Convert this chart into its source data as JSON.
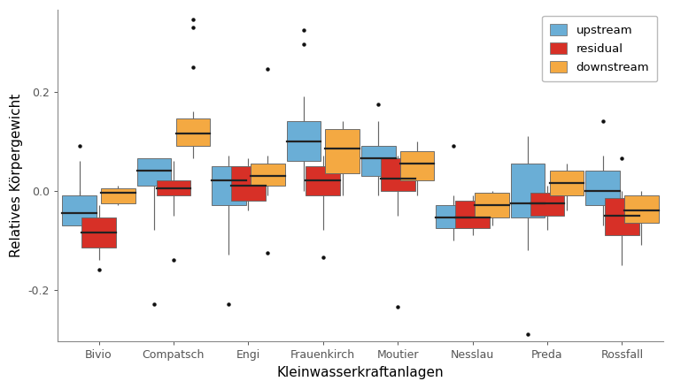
{
  "stations": [
    "Bivio",
    "Compatsch",
    "Engi",
    "Frauenkirch",
    "Moutier",
    "Nesslau",
    "Preda",
    "Rossfall"
  ],
  "types": [
    "upstream",
    "residual",
    "downstream"
  ],
  "colors": {
    "upstream": "#6aaed6",
    "residual": "#d73027",
    "downstream": "#f4a942"
  },
  "ylabel": "Relatives Körpergewicht",
  "xlabel": "Kleinwasserkraftanlagen",
  "ylim": [
    -0.305,
    0.365
  ],
  "yticks": [
    -0.2,
    0.0,
    0.2
  ],
  "box_data": {
    "Bivio": {
      "upstream": {
        "q1": -0.07,
        "med": -0.045,
        "q3": -0.01,
        "whlo": 0.0,
        "whhi": 0.06,
        "fliers": [
          0.09
        ]
      },
      "residual": {
        "q1": -0.115,
        "med": -0.085,
        "q3": -0.055,
        "whlo": -0.14,
        "whhi": -0.03,
        "fliers": [
          -0.16
        ]
      },
      "downstream": {
        "q1": -0.025,
        "med": -0.005,
        "q3": 0.005,
        "whlo": -0.03,
        "whhi": 0.01,
        "fliers": []
      }
    },
    "Compatsch": {
      "upstream": {
        "q1": 0.01,
        "med": 0.04,
        "q3": 0.065,
        "whlo": -0.08,
        "whhi": 0.065,
        "fliers": [
          -0.23
        ]
      },
      "residual": {
        "q1": -0.01,
        "med": 0.005,
        "q3": 0.02,
        "whlo": -0.05,
        "whhi": 0.06,
        "fliers": [
          -0.14
        ]
      },
      "downstream": {
        "q1": 0.09,
        "med": 0.115,
        "q3": 0.145,
        "whlo": 0.065,
        "whhi": 0.16,
        "fliers": [
          0.25,
          0.33,
          0.345
        ]
      }
    },
    "Engi": {
      "upstream": {
        "q1": -0.03,
        "med": 0.02,
        "q3": 0.05,
        "whlo": -0.13,
        "whhi": 0.07,
        "fliers": [
          -0.23
        ]
      },
      "residual": {
        "q1": -0.02,
        "med": 0.01,
        "q3": 0.05,
        "whlo": -0.04,
        "whhi": 0.065,
        "fliers": []
      },
      "downstream": {
        "q1": 0.01,
        "med": 0.03,
        "q3": 0.055,
        "whlo": -0.01,
        "whhi": 0.07,
        "fliers": [
          0.245,
          -0.125
        ]
      }
    },
    "Frauenkirch": {
      "upstream": {
        "q1": 0.06,
        "med": 0.1,
        "q3": 0.14,
        "whlo": 0.0,
        "whhi": 0.19,
        "fliers": [
          0.295,
          0.325
        ]
      },
      "residual": {
        "q1": -0.01,
        "med": 0.02,
        "q3": 0.05,
        "whlo": -0.08,
        "whhi": 0.07,
        "fliers": [
          -0.135
        ]
      },
      "downstream": {
        "q1": 0.035,
        "med": 0.085,
        "q3": 0.125,
        "whlo": -0.01,
        "whhi": 0.14,
        "fliers": []
      }
    },
    "Moutier": {
      "upstream": {
        "q1": 0.03,
        "med": 0.065,
        "q3": 0.09,
        "whlo": -0.01,
        "whhi": 0.14,
        "fliers": [
          0.175
        ]
      },
      "residual": {
        "q1": 0.0,
        "med": 0.025,
        "q3": 0.065,
        "whlo": -0.05,
        "whhi": 0.07,
        "fliers": [
          -0.235
        ]
      },
      "downstream": {
        "q1": 0.02,
        "med": 0.055,
        "q3": 0.08,
        "whlo": -0.01,
        "whhi": 0.1,
        "fliers": []
      }
    },
    "Nesslau": {
      "upstream": {
        "q1": -0.075,
        "med": -0.055,
        "q3": -0.03,
        "whlo": -0.1,
        "whhi": -0.01,
        "fliers": [
          0.09
        ]
      },
      "residual": {
        "q1": -0.075,
        "med": -0.055,
        "q3": -0.02,
        "whlo": -0.09,
        "whhi": -0.01,
        "fliers": []
      },
      "downstream": {
        "q1": -0.055,
        "med": -0.03,
        "q3": -0.005,
        "whlo": -0.07,
        "whhi": 0.0,
        "fliers": []
      }
    },
    "Preda": {
      "upstream": {
        "q1": -0.055,
        "med": -0.025,
        "q3": 0.055,
        "whlo": -0.12,
        "whhi": 0.11,
        "fliers": [
          -0.29
        ]
      },
      "residual": {
        "q1": -0.05,
        "med": -0.025,
        "q3": -0.005,
        "whlo": -0.08,
        "whhi": 0.01,
        "fliers": []
      },
      "downstream": {
        "q1": -0.01,
        "med": 0.015,
        "q3": 0.04,
        "whlo": -0.04,
        "whhi": 0.055,
        "fliers": []
      }
    },
    "Rossfall": {
      "upstream": {
        "q1": -0.03,
        "med": 0.0,
        "q3": 0.04,
        "whlo": -0.07,
        "whhi": 0.07,
        "fliers": [
          0.14
        ]
      },
      "residual": {
        "q1": -0.09,
        "med": -0.05,
        "q3": -0.015,
        "whlo": -0.15,
        "whhi": 0.0,
        "fliers": [
          0.065
        ]
      },
      "downstream": {
        "q1": -0.065,
        "med": -0.04,
        "q3": -0.01,
        "whlo": -0.11,
        "whhi": 0.0,
        "fliers": []
      }
    }
  },
  "legend_fontsize": 9.5,
  "axis_label_fontsize": 11,
  "tick_fontsize": 9,
  "background_color": "#ffffff",
  "box_width": 0.26,
  "figure_width": 7.6,
  "figure_height": 4.4
}
